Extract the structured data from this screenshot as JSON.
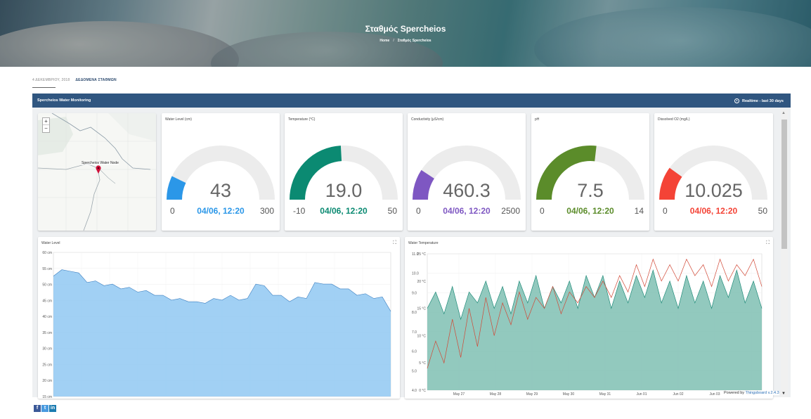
{
  "hero": {
    "title": "Σταθμός Spercheios",
    "breadcrumb": [
      "Home",
      "Σταθμός Spercheios"
    ]
  },
  "post": {
    "date": "4 ΔΕΚΕΜΒΡΙΟΥ, 2018",
    "category": "ΔΕΔΟΜΕΝΑ ΣΤΑΘΜΩΝ"
  },
  "dashboard": {
    "title": "Spercheios Water Monitoring",
    "timewindow": "Realtime - last 30 days"
  },
  "map": {
    "marker_label": "Spercheios Water Node",
    "zoom_in": "+",
    "zoom_out": "−"
  },
  "gauges": [
    {
      "title": "Water Level (cm)",
      "value": "43",
      "min": "0",
      "max": "300",
      "ts": "04/06, 12:20",
      "fraction": 0.143,
      "color": "#2b97e8"
    },
    {
      "title": "Temperature (°C)",
      "value": "19.0",
      "min": "-10",
      "max": "50",
      "ts": "04/06, 12:20",
      "fraction": 0.483,
      "color": "#0b8a72"
    },
    {
      "title": "Conductivity (μS/cm)",
      "value": "460.3",
      "min": "0",
      "max": "2500",
      "ts": "04/06, 12:20",
      "fraction": 0.184,
      "color": "#7e57c2"
    },
    {
      "title": "pH",
      "value": "7.5",
      "min": "0",
      "max": "14",
      "ts": "04/06, 12:20",
      "fraction": 0.536,
      "color": "#5b8c2a"
    },
    {
      "title": "Dissolved O2 (mg/L)",
      "value": "10.025",
      "min": "0",
      "max": "50",
      "ts": "04/06, 12:20",
      "fraction": 0.2,
      "color": "#f44336"
    }
  ],
  "charts": {
    "water_level": {
      "title": "Water Level"
    },
    "water_temperature": {
      "title": "Water Temperature"
    }
  },
  "footer": {
    "powered_prefix": "Powered by",
    "powered_link": "Thingsboard v.2.4.3"
  },
  "social": [
    "f",
    "t",
    "in"
  ],
  "chart_data": [
    {
      "type": "area",
      "title": "Water Level",
      "ylim": [
        15,
        60
      ],
      "yticks": [
        "15 cm",
        "20 cm",
        "25 cm",
        "30 cm",
        "35 cm",
        "40 cm",
        "45 cm",
        "50 cm",
        "55 cm",
        "60 cm"
      ],
      "x": [
        0,
        1,
        2,
        3,
        4,
        5,
        6,
        7,
        8,
        9,
        10,
        11,
        12,
        13,
        14,
        15,
        16,
        17,
        18,
        19,
        20,
        21,
        22,
        23,
        24,
        25,
        26,
        27,
        28,
        29,
        30,
        31,
        32,
        33,
        34,
        35,
        36,
        37,
        38,
        39,
        40
      ],
      "series": [
        {
          "values": [
            53,
            54,
            54.5,
            53,
            51,
            50.5,
            50,
            49.5,
            49,
            48.5,
            48,
            47.5,
            47,
            46,
            45.5,
            45,
            45,
            44,
            44.5,
            45,
            45.5,
            46,
            45.5,
            45,
            50.5,
            49,
            47,
            46,
            45,
            45.5,
            46,
            50,
            50.5,
            49.5,
            49,
            48,
            47,
            46.5,
            46,
            45.5,
            42
          ],
          "color": "#90c8f2"
        }
      ]
    },
    {
      "type": "line",
      "title": "Water Temperature",
      "ylim": [
        0,
        25
      ],
      "y_left_ticks": [
        "0 °C",
        "5 °C",
        "10 °C",
        "15 °C",
        "20 °C",
        "25 °C"
      ],
      "y_right_ticks": [
        "4.0",
        "5.0",
        "6.0",
        "7.0",
        "8.0",
        "9.0",
        "10.0",
        "11.0"
      ],
      "x_ticks": [
        "May 27",
        "May 28",
        "May 29",
        "May 30",
        "May 31",
        "Jun 01",
        "Jun 02",
        "Jun 03",
        "Jun 04"
      ],
      "series": [
        {
          "color": "#1e8a78",
          "values": [
            15,
            18,
            14,
            19,
            13,
            18,
            16,
            20,
            15,
            19,
            14,
            20,
            16,
            21,
            15,
            19,
            16,
            20,
            15,
            21,
            17,
            21,
            15,
            20,
            16,
            21,
            17,
            22,
            16,
            20,
            15,
            21,
            16,
            20,
            15,
            21,
            17,
            22,
            16,
            20,
            15
          ]
        },
        {
          "color": "#d14836",
          "values": [
            4,
            9,
            5,
            13,
            6,
            15,
            8,
            17,
            10,
            16,
            12,
            18,
            13,
            17,
            15,
            19,
            14,
            18,
            16,
            19,
            17,
            20,
            17,
            21,
            18,
            23,
            19,
            24,
            20,
            23,
            20,
            24,
            21,
            23,
            19,
            24,
            20,
            23,
            21,
            24,
            19
          ]
        }
      ]
    }
  ]
}
